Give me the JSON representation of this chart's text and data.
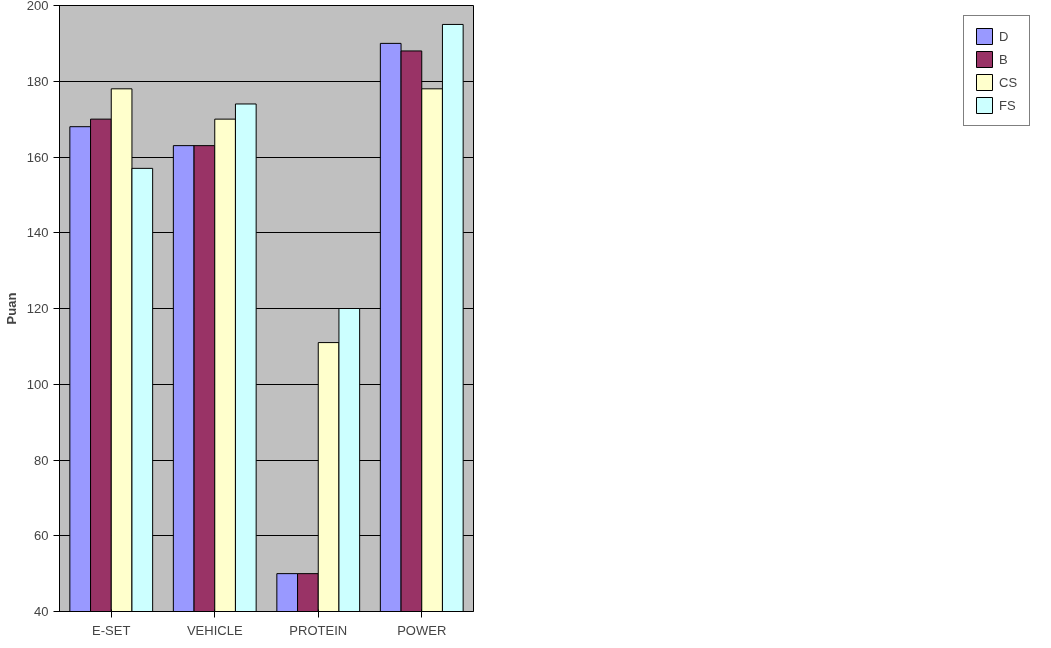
{
  "chart_data": {
    "type": "bar",
    "ylabel": "Puan",
    "categories": [
      "E-SET",
      "VEHICLE",
      "PROTEIN",
      "POWER"
    ],
    "series": [
      {
        "name": "D",
        "color": "#9999ff",
        "values": [
          168,
          163,
          50,
          190
        ]
      },
      {
        "name": "B",
        "color": "#993366",
        "values": [
          170,
          163,
          50,
          188
        ]
      },
      {
        "name": "CS",
        "color": "#ffffcc",
        "values": [
          178,
          170,
          111,
          178
        ]
      },
      {
        "name": "FS",
        "color": "#ccffff",
        "values": [
          157,
          174,
          120,
          195
        ]
      }
    ],
    "ylim": [
      40,
      200
    ],
    "yticks": [
      40,
      60,
      80,
      100,
      120,
      140,
      160,
      180,
      200
    ],
    "grid": "y",
    "legend": "right"
  }
}
